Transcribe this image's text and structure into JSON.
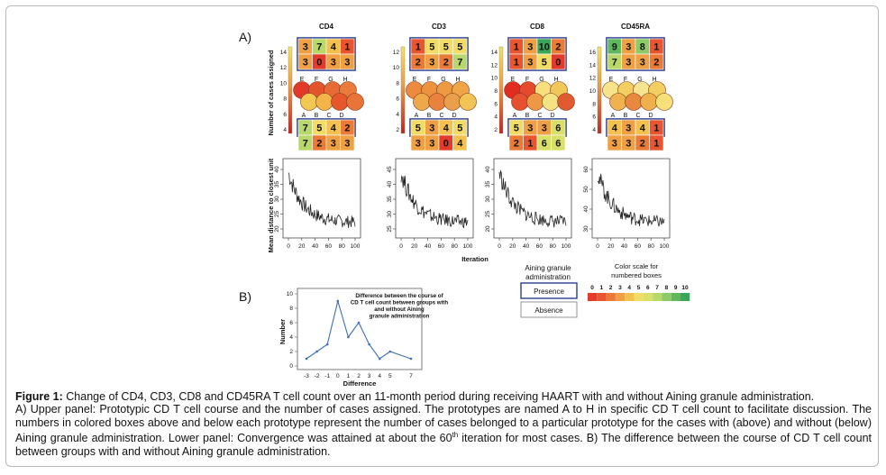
{
  "panel_labels": {
    "a": "A)",
    "b": "B)"
  },
  "som": {
    "panels": [
      {
        "title": "CD4",
        "scale_ticks": [
          "14",
          "12",
          "10",
          "8",
          "6",
          "4"
        ],
        "top_rows": [
          [
            3,
            7,
            4,
            1
          ],
          [
            3,
            0,
            3,
            3
          ]
        ],
        "bottom_rows": [
          [
            7,
            5,
            4,
            2
          ],
          [
            7,
            2,
            3,
            3
          ]
        ],
        "circle_letters_top": [
          "E",
          "F",
          "G",
          "H"
        ],
        "circle_letters_bottom": [
          "A",
          "B",
          "C",
          "D"
        ],
        "circle_colors_top": [
          "#e13a2a",
          "#e4552e",
          "#e86a35",
          "#ea7b3c"
        ],
        "circle_colors_bottom": [
          "#f2c752",
          "#f3b44a",
          "#e8562c",
          "#e9743a"
        ]
      },
      {
        "title": "CD3",
        "scale_ticks": [
          "12",
          "10",
          "8",
          "6",
          "4",
          "2"
        ],
        "top_rows": [
          [
            1,
            5,
            5,
            5
          ],
          [
            2,
            3,
            2,
            7
          ]
        ],
        "bottom_rows": [
          [
            5,
            3,
            4,
            5
          ],
          [
            3,
            3,
            0,
            4
          ]
        ],
        "circle_letters_top": [
          "E",
          "F",
          "G",
          "H"
        ],
        "circle_letters_bottom": [
          "A",
          "B",
          "C",
          "D"
        ],
        "circle_colors_top": [
          "#ec8a40",
          "#ed933f",
          "#ee9a42",
          "#f0a646"
        ],
        "circle_colors_bottom": [
          "#efa849",
          "#e9823c",
          "#eaa04a",
          "#f1c455"
        ]
      },
      {
        "title": "CD8",
        "scale_ticks": [
          "14",
          "12",
          "10",
          "8",
          "6",
          "4",
          "2"
        ],
        "top_rows": [
          [
            1,
            3,
            10,
            2
          ],
          [
            1,
            3,
            5,
            0
          ]
        ],
        "bottom_rows": [
          [
            5,
            3,
            3,
            6
          ],
          [
            2,
            1,
            6,
            6
          ]
        ],
        "circle_letters_top": [
          "E",
          "F",
          "G",
          "H"
        ],
        "circle_letters_bottom": [
          "A",
          "B",
          "C",
          "D"
        ],
        "circle_colors_top": [
          "#e22c22",
          "#e64a2c",
          "#f5e07a",
          "#f2c75a"
        ],
        "circle_colors_bottom": [
          "#e55030",
          "#ee9746",
          "#f5e383",
          "#e25a30"
        ]
      },
      {
        "title": "CD45RA",
        "scale_ticks": [
          "16",
          "14",
          "12",
          "10",
          "8",
          "6",
          "4"
        ],
        "top_rows": [
          [
            9,
            3,
            8,
            1
          ],
          [
            7,
            3,
            3,
            2
          ]
        ],
        "bottom_rows": [
          [
            4,
            3,
            4,
            1
          ],
          [
            3,
            3,
            2,
            1
          ]
        ],
        "circle_letters_top": [
          "E",
          "F",
          "G",
          "H"
        ],
        "circle_letters_bottom": [
          "A",
          "B",
          "C",
          "D"
        ],
        "circle_colors_top": [
          "#f5e48a",
          "#f2cf5e",
          "#f6e590",
          "#f3cf62"
        ],
        "circle_colors_bottom": [
          "#efb24e",
          "#e9893e",
          "#f0b04c",
          "#f6e07c"
        ]
      }
    ],
    "ylabel_top": "Number of cases assigned",
    "ylabel_bottom": "Mean distance to closest unit",
    "xlabel_bottom": "Iteration",
    "x_ticks": [
      "0",
      "20",
      "40",
      "60",
      "80",
      "100"
    ],
    "conv_y_ticks": [
      [
        "20",
        "25",
        "30",
        "35",
        "40"
      ],
      [
        "25",
        "30",
        "35",
        "40",
        "45"
      ],
      [
        "20",
        "25",
        "30",
        "35",
        "40"
      ],
      [
        "30",
        "40",
        "50",
        "60"
      ]
    ],
    "legend": {
      "title": "Aining granule administration",
      "presence": "Presence",
      "absence": "Absence",
      "scale_title": "Color scale for numbered boxes",
      "scale_ticks": [
        "0",
        "1",
        "2",
        "3",
        "4",
        "5",
        "6",
        "7",
        "8",
        "9",
        "10"
      ],
      "presence_color": "#2b3f8f",
      "absence_color": "#7a7a7a"
    }
  },
  "chart_data": {
    "type": "line",
    "title": "Difference between the course of CD T cell count between groups with and without Aining granule administration",
    "xlabel": "Difference",
    "ylabel": "Number",
    "x": [
      -3,
      -2,
      -1,
      0,
      1,
      2,
      3,
      4,
      5,
      7
    ],
    "values": [
      1,
      2,
      3,
      9,
      4,
      6,
      3,
      1,
      2,
      1
    ],
    "xticks": [
      "-3",
      "-2",
      "-1",
      "0",
      "1",
      "2",
      "3",
      "4",
      "5",
      "7"
    ],
    "yticks": [
      0,
      2,
      4,
      6,
      8,
      10
    ],
    "ylim": [
      0,
      10
    ],
    "line_color": "#3f6fb5"
  },
  "caption": {
    "bold_prefix": "Figure 1:",
    "line1": " Change of CD4, CD3, CD8 and CD45RA T cell count over an 11-month period during receiving HAART with and without Aining granule administration.",
    "line2": "A) Upper panel: Prototypic CD T cell course and the number of cases assigned. The prototypes are named A to H in specific CD T cell count to facilitate discussion. The numbers in colored boxes above and below each prototype represent the number of cases belonged to a particular prototype for the cases with (above) and without (below) Aining granule administration. Lower panel: Convergence was attained at about the 60",
    "superscript": "th",
    "line3": " iteration for most cases. B) The difference between the course of CD T cell count between groups with and without Aining granule administration."
  }
}
